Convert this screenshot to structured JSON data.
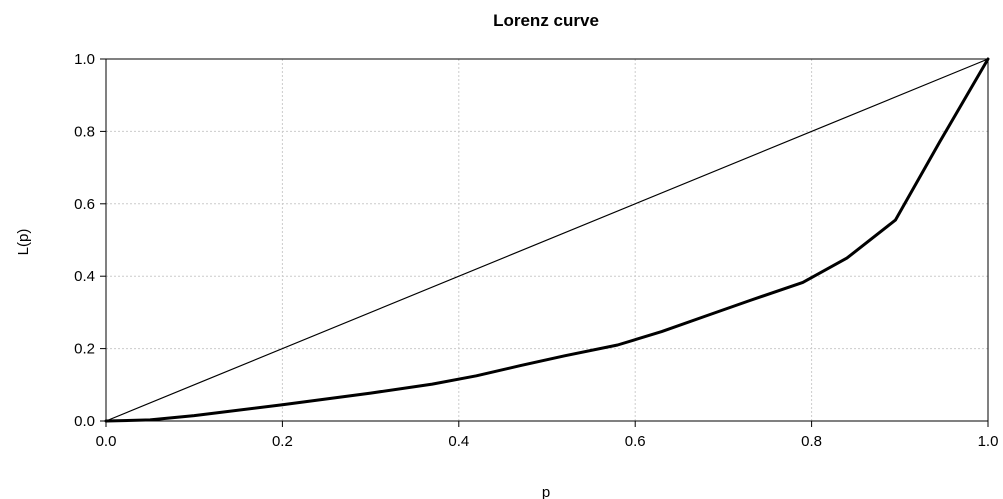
{
  "chart_data": {
    "type": "line",
    "title": "Lorenz curve",
    "xlabel": "p",
    "ylabel": "L(p)",
    "xlim": [
      0,
      1
    ],
    "ylim": [
      0,
      1
    ],
    "x_ticks": [
      "0.0",
      "0.2",
      "0.4",
      "0.6",
      "0.8",
      "1.0"
    ],
    "y_ticks": [
      "0.0",
      "0.2",
      "0.4",
      "0.6",
      "0.8",
      "1.0"
    ],
    "grid": true,
    "legend": "none",
    "series": [
      {
        "role": "equality-line",
        "x": [
          0,
          1
        ],
        "y": [
          0,
          1
        ]
      },
      {
        "role": "lorenz-curve",
        "x": [
          0,
          0.05,
          0.1,
          0.2,
          0.3,
          0.37,
          0.42,
          0.47,
          0.52,
          0.58,
          0.63,
          0.68,
          0.73,
          0.79,
          0.84,
          0.895,
          0.945,
          1.0
        ],
        "y": [
          0,
          0.003,
          0.015,
          0.045,
          0.077,
          0.102,
          0.125,
          0.153,
          0.18,
          0.21,
          0.247,
          0.29,
          0.333,
          0.383,
          0.45,
          0.555,
          0.77,
          1.0
        ]
      }
    ]
  },
  "colors": {
    "axis": "#000000",
    "grid": "#cccccc",
    "line": "#000000",
    "background": "#ffffff"
  }
}
